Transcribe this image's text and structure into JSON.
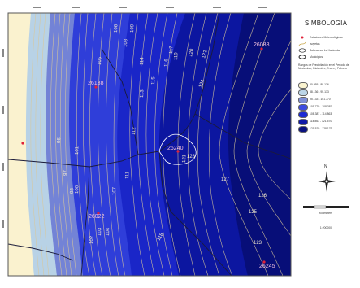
{
  "legend": {
    "title": "SIMBOLOGIA",
    "symbols": [
      {
        "label": "Estaciones Meteorológicas",
        "icon": "red-dot-icon"
      },
      {
        "label": "Isoyetas",
        "icon": "isohyet-line-icon"
      },
      {
        "label": "Subcuenca La Hacienda",
        "icon": "subbasin-outline-icon"
      },
      {
        "label": "Municipios",
        "icon": "municipality-outline-icon"
      }
    ],
    "ranges_caption": "Rangos de Precipitación en el Período de Noviembre, Diciembre, Enero y Febrero",
    "ranges": [
      {
        "label": "80.955 - 88.136",
        "color": "#fbf4d0"
      },
      {
        "label": "88.136 - 95.133",
        "color": "#bcd6e8"
      },
      {
        "label": "95.133 - 101.770",
        "color": "#7f8fd8"
      },
      {
        "label": "101.770 - 108.387",
        "color": "#3d4be0"
      },
      {
        "label": "108.387 - 114.863",
        "color": "#1c2ad2"
      },
      {
        "label": "114.863 - 121.570",
        "color": "#0f1aa8"
      },
      {
        "label": "121.570 - 128.179",
        "color": "#091180"
      }
    ],
    "scale_unit": "Kilometers",
    "scale_ratio": "1:200000",
    "north_label": "N"
  },
  "map": {
    "stations": [
      {
        "label": "26088"
      },
      {
        "label": "26188"
      },
      {
        "label": "26240"
      },
      {
        "label": "26022"
      },
      {
        "label": "26245"
      },
      {
        "label": ""
      }
    ],
    "isohyet_labels": [
      "96",
      "97",
      "98",
      "100",
      "101",
      "102",
      "103",
      "104",
      "105",
      "106",
      "107",
      "108",
      "109",
      "111",
      "112",
      "113",
      "114",
      "115",
      "116",
      "117",
      "118",
      "119",
      "120",
      "121",
      "122",
      "123",
      "124",
      "125",
      "126",
      "127",
      "128"
    ]
  }
}
